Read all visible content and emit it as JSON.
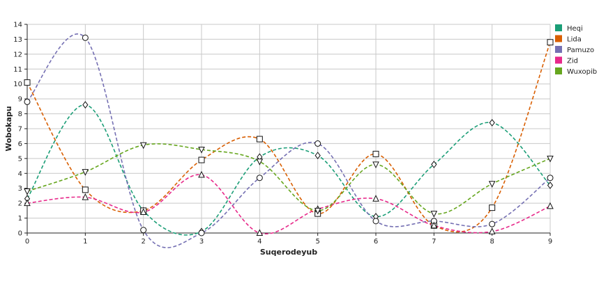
{
  "chart_data": {
    "type": "line",
    "title": "",
    "xlabel": "Suqerodeyub",
    "ylabel": "Wobokapu",
    "x": [
      0,
      1,
      2,
      3,
      4,
      5,
      6,
      7,
      8,
      9
    ],
    "xlim": [
      0,
      9
    ],
    "ylim": [
      0,
      14
    ],
    "x_ticks": [
      0,
      1,
      2,
      3,
      4,
      5,
      6,
      7,
      8,
      9
    ],
    "y_ticks": [
      0,
      1,
      2,
      3,
      4,
      5,
      6,
      7,
      8,
      9,
      10,
      11,
      12,
      13,
      14
    ],
    "grid": true,
    "legend_position": "top-right",
    "series": [
      {
        "name": "Heqi",
        "color": "#1b9e77",
        "marker": "diamond",
        "values": [
          2.3,
          8.6,
          1.5,
          0.1,
          5.1,
          5.2,
          1.1,
          4.6,
          7.4,
          3.2
        ]
      },
      {
        "name": "Lida",
        "color": "#d95f02",
        "marker": "square",
        "values": [
          10.1,
          2.9,
          1.5,
          4.9,
          6.3,
          1.3,
          5.3,
          0.5,
          1.7,
          12.8
        ]
      },
      {
        "name": "Pamuzo",
        "color": "#7570b3",
        "marker": "circle",
        "values": [
          8.8,
          13.1,
          0.2,
          0.0,
          3.7,
          6.0,
          0.8,
          0.8,
          0.6,
          3.7
        ]
      },
      {
        "name": "Zid",
        "color": "#e7298a",
        "marker": "triangle-up",
        "values": [
          2.0,
          2.4,
          1.4,
          3.9,
          0.0,
          1.6,
          2.3,
          0.5,
          0.1,
          1.8
        ]
      },
      {
        "name": "Wuxopib",
        "color": "#66a61e",
        "marker": "triangle-down",
        "values": [
          2.8,
          4.1,
          5.9,
          5.6,
          4.8,
          1.5,
          4.6,
          1.3,
          3.3,
          5.0
        ]
      }
    ]
  }
}
